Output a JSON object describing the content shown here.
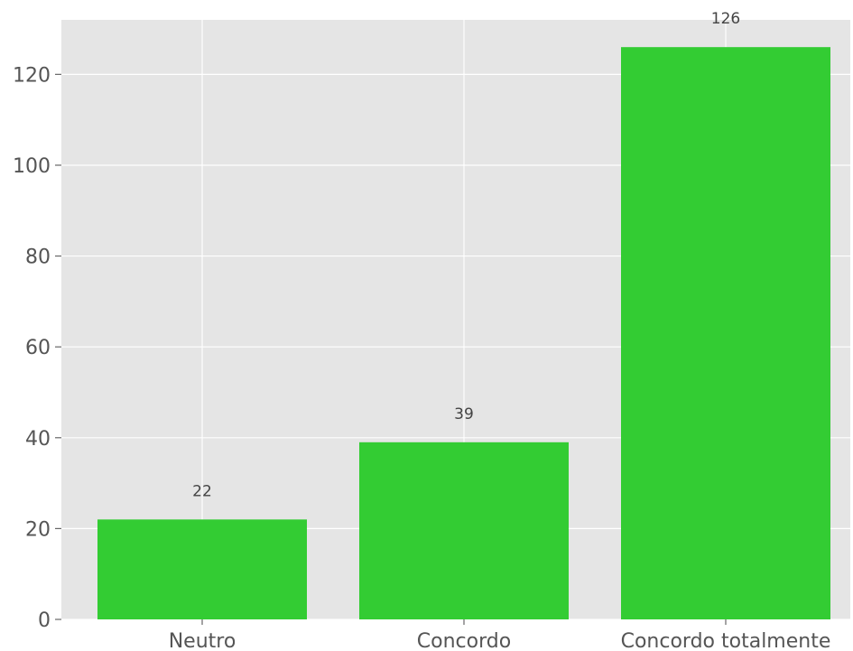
{
  "chart_data": {
    "type": "bar",
    "categories": [
      "Neutro",
      "Concordo",
      "Concordo totalmente"
    ],
    "values": [
      22,
      39,
      126
    ],
    "data_labels": [
      "22",
      "39",
      "126"
    ],
    "title": "",
    "xlabel": "",
    "ylabel": "",
    "ylim": [
      0,
      132
    ],
    "yticks": [
      0,
      20,
      40,
      60,
      80,
      100,
      120
    ],
    "ytick_labels": [
      "0",
      "20",
      "40",
      "60",
      "80",
      "100",
      "120"
    ],
    "grid": true,
    "colors": {
      "bar": "#33cc33",
      "plot_background": "#e5e5e5",
      "grid": "#ffffff",
      "text": "#555555"
    }
  }
}
